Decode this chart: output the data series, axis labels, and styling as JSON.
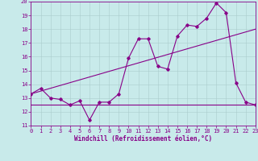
{
  "xlabel": "Windchill (Refroidissement éolien,°C)",
  "background_color": "#c8eaea",
  "line_color": "#880088",
  "xmin": 0,
  "xmax": 23,
  "ymin": 11,
  "ymax": 20,
  "data_x": [
    0,
    1,
    2,
    3,
    4,
    5,
    6,
    7,
    8,
    9,
    10,
    11,
    12,
    13,
    14,
    15,
    16,
    17,
    18,
    19,
    20,
    21,
    22,
    23
  ],
  "data_y": [
    13.3,
    13.7,
    13.0,
    12.9,
    12.5,
    12.8,
    11.4,
    12.7,
    12.7,
    13.3,
    15.9,
    17.3,
    17.3,
    15.3,
    15.1,
    17.5,
    18.3,
    18.2,
    18.8,
    19.9,
    19.2,
    14.1,
    12.7,
    12.5
  ],
  "trend1_x": [
    0,
    23
  ],
  "trend1_y": [
    13.3,
    18.0
  ],
  "trend2_x": [
    0,
    23
  ],
  "trend2_y": [
    12.5,
    12.5
  ],
  "yticks": [
    11,
    12,
    13,
    14,
    15,
    16,
    17,
    18,
    19,
    20
  ],
  "xticks": [
    0,
    1,
    2,
    3,
    4,
    5,
    6,
    7,
    8,
    9,
    10,
    11,
    12,
    13,
    14,
    15,
    16,
    17,
    18,
    19,
    20,
    21,
    22,
    23
  ],
  "tick_fontsize": 5.0,
  "xlabel_fontsize": 5.5,
  "grid_color": "#aacccc",
  "grid_alpha": 1.0,
  "grid_linewidth": 0.4
}
